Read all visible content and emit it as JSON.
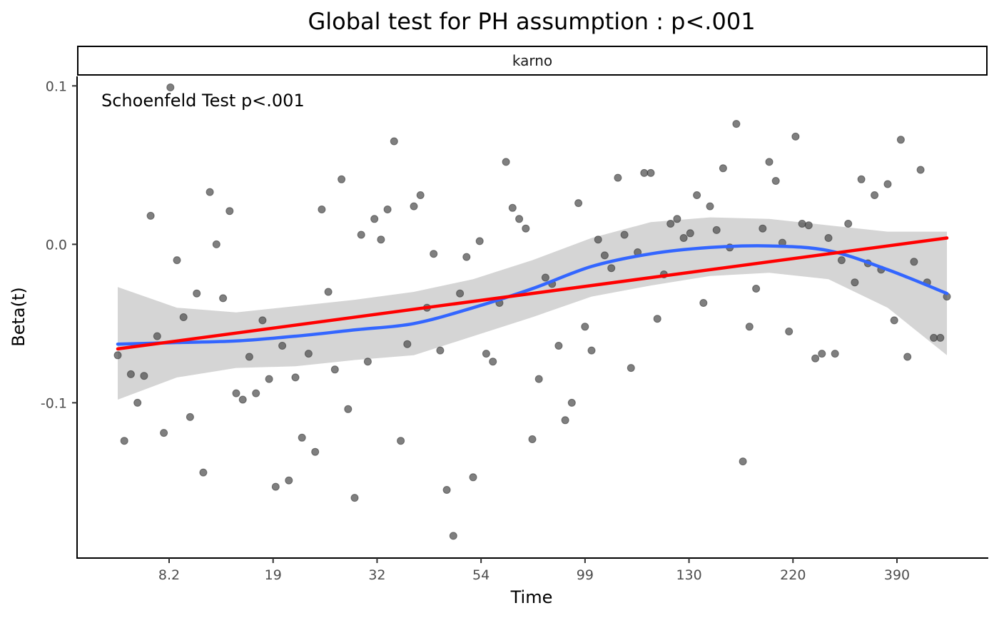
{
  "chart_data": {
    "type": "scatter",
    "title": "Global test for PH assumption : p<.001",
    "facet_label": "karno",
    "annotation": "Schoenfeld Test p<.001",
    "xlabel": "Time",
    "ylabel": "Beta(t)",
    "x_scale": "rank-transformed",
    "x_tick_labels": [
      "8.2",
      "19",
      "32",
      "54",
      "99",
      "130",
      "220",
      "390"
    ],
    "y_ticks": [
      0.1,
      0.0,
      -0.1
    ],
    "y_tick_labels": [
      "0.1",
      "0.0",
      "-0.1"
    ],
    "ylim": [
      -0.198,
      0.106
    ],
    "grid": false,
    "colors": {
      "points": "#4d4d4d",
      "linear_fit": "#ff0000",
      "smooth_fit": "#3366ff",
      "confidence_band": "#d3d3d3"
    },
    "points": {
      "name": "Schoenfeld residuals",
      "values": [
        -0.07,
        -0.124,
        -0.082,
        -0.1,
        -0.083,
        0.018,
        -0.058,
        -0.119,
        0.099,
        -0.01,
        -0.046,
        -0.109,
        -0.031,
        -0.144,
        0.033,
        0.0,
        -0.034,
        0.021,
        -0.094,
        -0.098,
        -0.071,
        -0.094,
        -0.048,
        -0.085,
        -0.153,
        -0.064,
        -0.149,
        -0.084,
        -0.122,
        -0.069,
        -0.131,
        0.022,
        -0.03,
        -0.079,
        0.041,
        -0.104,
        -0.16,
        0.006,
        -0.074,
        0.016,
        0.003,
        0.022,
        0.065,
        -0.124,
        -0.063,
        0.024,
        0.031,
        -0.04,
        -0.006,
        -0.067,
        -0.155,
        -0.184,
        -0.031,
        -0.008,
        -0.147,
        0.002,
        -0.069,
        -0.074,
        -0.037,
        0.052,
        0.023,
        0.016,
        0.01,
        -0.123,
        -0.085,
        -0.021,
        -0.025,
        -0.064,
        -0.111,
        -0.1,
        0.026,
        -0.052,
        -0.067,
        0.003,
        -0.007,
        -0.015,
        0.042,
        0.006,
        -0.078,
        -0.005,
        0.045,
        0.045,
        -0.047,
        -0.019,
        0.013,
        0.016,
        0.004,
        0.007,
        0.031,
        -0.037,
        0.024,
        0.009,
        0.048,
        -0.002,
        0.076,
        -0.137,
        -0.052,
        -0.028,
        0.01,
        0.052,
        0.04,
        0.001,
        -0.055,
        0.068,
        0.013,
        0.012,
        -0.072,
        -0.069,
        0.004,
        -0.069,
        -0.01,
        0.013,
        -0.024,
        0.041,
        -0.012,
        0.031,
        -0.016,
        0.038,
        -0.048,
        0.066,
        -0.071,
        -0.011,
        0.047,
        -0.024,
        -0.059,
        -0.059,
        -0.033
      ]
    },
    "series": [
      {
        "name": "Linear fit",
        "y_start": -0.066,
        "y_end": 0.004
      },
      {
        "name": "LOESS smooth",
        "values": [
          -0.063,
          -0.062,
          -0.061,
          -0.058,
          -0.054,
          -0.05,
          -0.04,
          -0.028,
          -0.014,
          -0.006,
          -0.002,
          -0.001,
          -0.004,
          -0.016,
          -0.031
        ],
        "band_upper": [
          -0.027,
          -0.04,
          -0.043,
          -0.039,
          -0.035,
          -0.03,
          -0.022,
          -0.01,
          0.004,
          0.014,
          0.017,
          0.016,
          0.012,
          0.008,
          0.008
        ],
        "band_lower": [
          -0.098,
          -0.084,
          -0.078,
          -0.077,
          -0.073,
          -0.07,
          -0.058,
          -0.046,
          -0.033,
          -0.026,
          -0.02,
          -0.018,
          -0.022,
          -0.04,
          -0.07
        ]
      }
    ]
  }
}
